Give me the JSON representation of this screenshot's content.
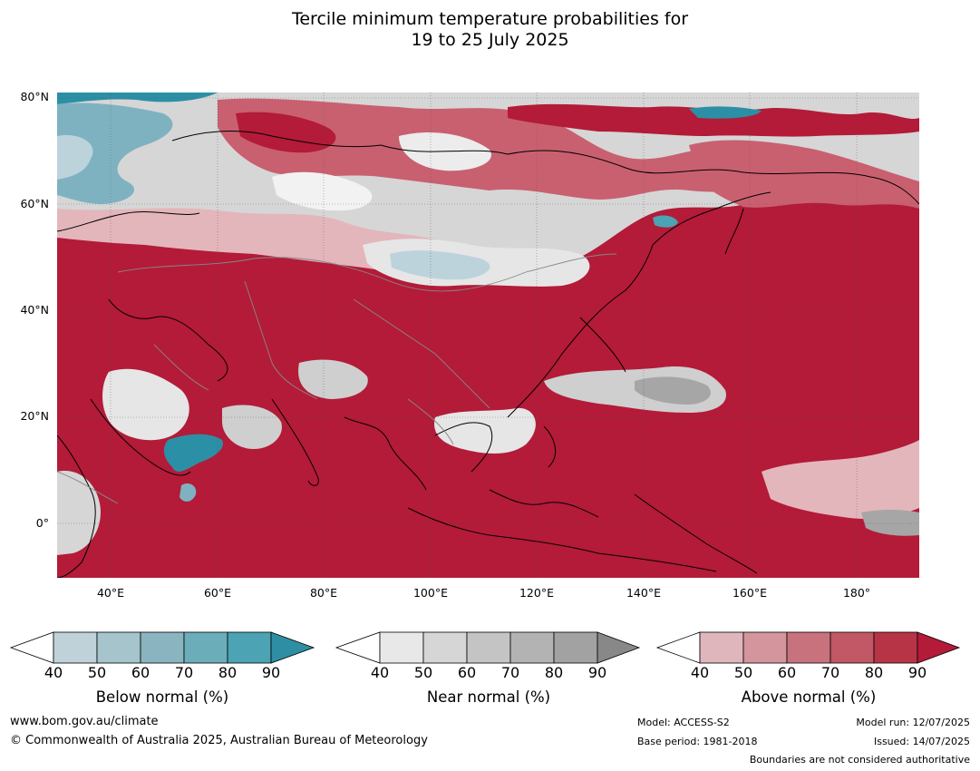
{
  "title": {
    "line1": "Tercile minimum temperature probabilities for",
    "line2": "19 to 25 July 2025"
  },
  "map": {
    "lat_labels": [
      "80°N",
      "60°N",
      "40°N",
      "20°N",
      "0°"
    ],
    "lon_labels": [
      "40°E",
      "60°E",
      "80°E",
      "100°E",
      "120°E",
      "140°E",
      "160°E",
      "180°"
    ],
    "colors": {
      "above_90": "#b31b38",
      "above_80": "#be3b52",
      "above_70": "#c9606f",
      "above_60": "#d68c95",
      "above_50": "#e3b6bb",
      "near_light": "#e6e6e6",
      "near_mid": "#cfcfcf",
      "near_dark": "#a6a6a6",
      "below_light": "#bcd3dc",
      "below_mid": "#7fb2c0",
      "below_dark": "#2b8fa6",
      "coast": "#000000",
      "border": "#888888"
    }
  },
  "colorbars": [
    {
      "label": "Below normal (%)",
      "ticks": [
        "40",
        "50",
        "60",
        "70",
        "80",
        "90"
      ],
      "colors": [
        "#bfd2d9",
        "#a5c4cc",
        "#89b4c0",
        "#6badb9",
        "#4ba3b3",
        "#2e8ea4"
      ]
    },
    {
      "label": "Near normal (%)",
      "ticks": [
        "40",
        "50",
        "60",
        "70",
        "80",
        "90"
      ],
      "colors": [
        "#e8e8e8",
        "#d6d6d6",
        "#c4c4c4",
        "#b3b3b3",
        "#a2a2a2",
        "#888888"
      ]
    },
    {
      "label": "Above normal (%)",
      "ticks": [
        "40",
        "50",
        "60",
        "70",
        "80",
        "90"
      ],
      "colors": [
        "#dfb6bc",
        "#d4959c",
        "#c8727d",
        "#c25766",
        "#b73447",
        "#b31b38"
      ]
    }
  ],
  "footer": {
    "website": "www.bom.gov.au/climate",
    "copyright": "© Commonwealth of Australia 2025, Australian Bureau of Meteorology",
    "model": "Model: ACCESS-S2",
    "base_period": "Base period: 1981-2018",
    "model_run": "Model run: 12/07/2025",
    "issued": "Issued: 14/07/2025",
    "disclaimer": "Boundaries are not considered authoritative"
  }
}
